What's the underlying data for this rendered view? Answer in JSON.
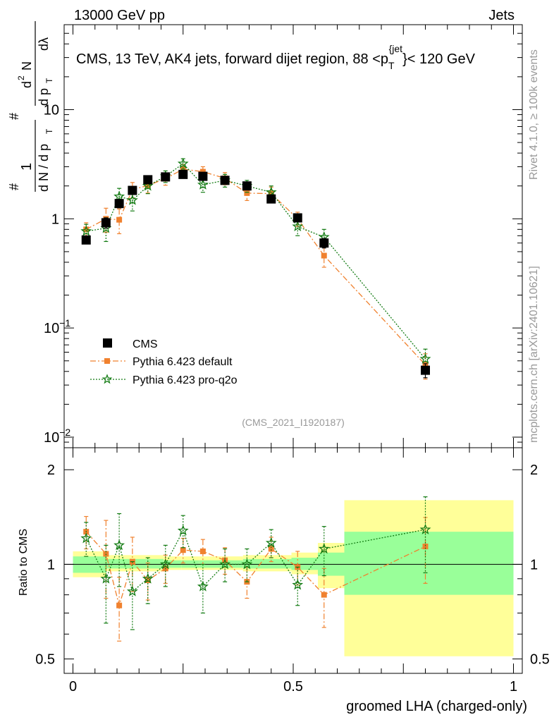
{
  "header": {
    "energy_label": "13000 GeV pp",
    "category_label": "Jets",
    "title_main": "CMS, 13 TeV, AK4 jets, forward dijet region, 88 <p",
    "title_sub": "T",
    "title_sup": "{jet",
    "title_end": "}< 120 GeV"
  },
  "side": {
    "rivet": "Rivet 4.1.0, ≥ 100k events",
    "mcplots": "mcplots.cern.ch [arXiv:2401.10621]"
  },
  "watermark": "(CMS_2021_I1920187)",
  "colors": {
    "data": "#000000",
    "default": "#f0812e",
    "proq2o": "#137b13",
    "band_outer": "#ffff99",
    "band_inner": "#99ff99"
  },
  "chart_data": [
    {
      "type": "scatter",
      "panel": "main",
      "scale": "log",
      "xlabel": "groomed LHA (charged-only)",
      "ylabel": "1/dN/dp_T dN/dp_T dλ",
      "ylim": [
        0.008,
        60
      ],
      "xlim": [
        -0.02,
        1.02
      ],
      "y_tick_labels": [
        {
          "v": 10,
          "t": "10"
        },
        {
          "v": 1,
          "t": "1"
        },
        {
          "v": 0.1,
          "t": "10",
          "sup": "−1"
        },
        {
          "v": 0.01,
          "t": "10",
          "sup": "−2"
        }
      ],
      "series": [
        {
          "name": "CMS",
          "key": "data",
          "x": [
            0.03,
            0.075,
            0.105,
            0.135,
            0.17,
            0.21,
            0.25,
            0.295,
            0.345,
            0.395,
            0.45,
            0.51,
            0.57,
            0.8
          ],
          "y": [
            0.64,
            0.92,
            1.38,
            1.82,
            2.28,
            2.42,
            2.55,
            2.45,
            2.25,
            2.0,
            1.52,
            1.02,
            0.6,
            0.041
          ],
          "err_lo": [
            0.05,
            0.1,
            0.12,
            0.15,
            0.12,
            0.12,
            0.12,
            0.12,
            0.12,
            0.1,
            0.1,
            0.08,
            0.06,
            0.006
          ],
          "err_hi": [
            0.05,
            0.1,
            0.12,
            0.15,
            0.12,
            0.12,
            0.12,
            0.12,
            0.12,
            0.1,
            0.1,
            0.08,
            0.06,
            0.006
          ]
        },
        {
          "name": "Pythia 6.423 default",
          "key": "default",
          "x": [
            0.03,
            0.075,
            0.105,
            0.135,
            0.17,
            0.21,
            0.25,
            0.295,
            0.345,
            0.395,
            0.45,
            0.51,
            0.57,
            0.8
          ],
          "y": [
            0.8,
            1.0,
            0.98,
            1.85,
            2.02,
            2.33,
            2.85,
            2.7,
            2.35,
            1.72,
            1.7,
            1.0,
            0.46,
            0.046
          ],
          "err_lo": [
            0.12,
            0.25,
            0.25,
            0.3,
            0.3,
            0.3,
            0.3,
            0.3,
            0.3,
            0.25,
            0.25,
            0.15,
            0.1,
            0.012
          ],
          "err_hi": [
            0.12,
            0.25,
            0.25,
            0.3,
            0.3,
            0.3,
            0.3,
            0.3,
            0.3,
            0.25,
            0.25,
            0.15,
            0.1,
            0.012
          ]
        },
        {
          "name": "Pythia 6.423 pro-q2o",
          "key": "proq2o",
          "x": [
            0.03,
            0.075,
            0.105,
            0.135,
            0.17,
            0.21,
            0.25,
            0.295,
            0.345,
            0.395,
            0.45,
            0.51,
            0.57,
            0.8
          ],
          "y": [
            0.77,
            0.82,
            1.6,
            1.48,
            2.0,
            2.45,
            3.2,
            2.05,
            2.25,
            2.0,
            1.75,
            0.85,
            0.68,
            0.052
          ],
          "err_lo": [
            0.12,
            0.2,
            0.3,
            0.3,
            0.3,
            0.3,
            0.35,
            0.3,
            0.3,
            0.25,
            0.25,
            0.15,
            0.12,
            0.012
          ],
          "err_hi": [
            0.12,
            0.2,
            0.3,
            0.3,
            0.3,
            0.3,
            0.35,
            0.3,
            0.3,
            0.25,
            0.25,
            0.15,
            0.12,
            0.012
          ]
        }
      ]
    },
    {
      "type": "scatter",
      "panel": "ratio",
      "scale": "log",
      "ylabel": "Ratio to CMS",
      "ylim": [
        0.45,
        2.35
      ],
      "y_tick_labels": [
        {
          "v": 2,
          "t": "2"
        },
        {
          "v": 1,
          "t": "1"
        },
        {
          "v": 0.5,
          "t": "0.5"
        }
      ],
      "x_tick_labels": [
        {
          "v": 0,
          "t": "0"
        },
        {
          "v": 0.5,
          "t": "0.5"
        },
        {
          "v": 1,
          "t": "1"
        }
      ],
      "bins": [
        0,
        0.06,
        0.09,
        0.12,
        0.15,
        0.19,
        0.23,
        0.27,
        0.32,
        0.37,
        0.42,
        0.48,
        0.54,
        0.6,
        1.0
      ],
      "band_outer": [
        [
          0.91,
          1.1
        ],
        [
          0.95,
          1.07
        ],
        [
          0.95,
          1.07
        ],
        [
          0.95,
          1.07
        ],
        [
          0.95,
          1.07
        ],
        [
          0.96,
          1.06
        ],
        [
          0.96,
          1.06
        ],
        [
          0.96,
          1.06
        ],
        [
          0.96,
          1.06
        ],
        [
          0.95,
          1.07
        ],
        [
          0.95,
          1.07
        ],
        [
          0.93,
          1.09
        ],
        [
          0.84,
          1.17
        ],
        [
          0.51,
          1.6
        ]
      ],
      "band_inner": [
        [
          0.94,
          1.06
        ],
        [
          0.97,
          1.04
        ],
        [
          0.97,
          1.04
        ],
        [
          0.97,
          1.04
        ],
        [
          0.97,
          1.04
        ],
        [
          0.975,
          1.03
        ],
        [
          0.975,
          1.03
        ],
        [
          0.975,
          1.03
        ],
        [
          0.975,
          1.03
        ],
        [
          0.97,
          1.04
        ],
        [
          0.97,
          1.04
        ],
        [
          0.96,
          1.05
        ],
        [
          0.92,
          1.09
        ],
        [
          0.8,
          1.27
        ]
      ],
      "series": [
        {
          "name": "Pythia 6.423 default",
          "key": "default",
          "x": [
            0.03,
            0.075,
            0.105,
            0.135,
            0.17,
            0.21,
            0.25,
            0.295,
            0.345,
            0.395,
            0.45,
            0.51,
            0.57,
            0.8
          ],
          "y": [
            1.27,
            1.08,
            0.74,
            1.02,
            0.89,
            0.97,
            1.11,
            1.1,
            1.03,
            0.88,
            1.12,
            0.98,
            0.8,
            1.14
          ],
          "err_lo": [
            0.15,
            0.3,
            0.17,
            0.2,
            0.12,
            0.1,
            0.1,
            0.1,
            0.1,
            0.1,
            0.1,
            0.12,
            0.17,
            0.27
          ],
          "err_hi": [
            0.15,
            0.3,
            0.17,
            0.2,
            0.12,
            0.1,
            0.1,
            0.1,
            0.1,
            0.1,
            0.1,
            0.12,
            0.17,
            0.27
          ]
        },
        {
          "name": "Pythia 6.423 pro-q2o",
          "key": "proq2o",
          "x": [
            0.03,
            0.075,
            0.105,
            0.135,
            0.17,
            0.21,
            0.25,
            0.295,
            0.345,
            0.395,
            0.45,
            0.51,
            0.57,
            0.8
          ],
          "y": [
            1.21,
            0.9,
            1.15,
            0.82,
            0.9,
            1.0,
            1.28,
            0.85,
            1.0,
            1.0,
            1.17,
            0.86,
            1.12,
            1.29
          ],
          "err_lo": [
            0.15,
            0.25,
            0.3,
            0.2,
            0.15,
            0.15,
            0.15,
            0.15,
            0.12,
            0.12,
            0.12,
            0.12,
            0.2,
            0.35
          ],
          "err_hi": [
            0.15,
            0.25,
            0.3,
            0.2,
            0.15,
            0.15,
            0.15,
            0.15,
            0.12,
            0.12,
            0.12,
            0.12,
            0.2,
            0.35
          ]
        }
      ]
    }
  ]
}
